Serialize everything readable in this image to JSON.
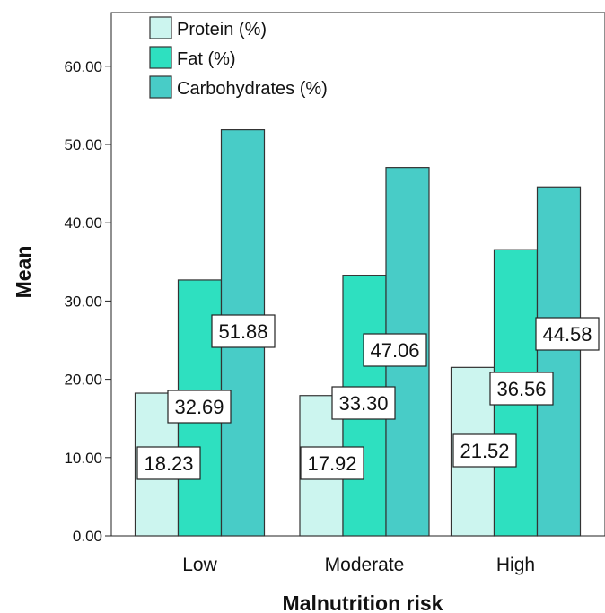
{
  "chart_data": {
    "type": "bar",
    "title": "",
    "xlabel": "Malnutrition risk",
    "ylabel": "Mean",
    "categories": [
      "Low",
      "Moderate",
      "High"
    ],
    "series": [
      {
        "name": "Protein (%)",
        "values": [
          18.23,
          17.92,
          21.52
        ],
        "color": "#ccf5ef"
      },
      {
        "name": "Fat (%)",
        "values": [
          32.69,
          33.3,
          36.56
        ],
        "color": "#2ee0c0"
      },
      {
        "name": "Carbohydrates (%)",
        "values": [
          51.88,
          47.06,
          44.58
        ],
        "color": "#48ccc7"
      }
    ],
    "yticks": [
      "0.00",
      "10.00",
      "20.00",
      "30.00",
      "40.00",
      "50.00",
      "60.00"
    ],
    "ylim": [
      0,
      60
    ],
    "grid": false,
    "legend_position": "top-left",
    "data_labels": [
      [
        "18.23",
        "17.92",
        "21.52"
      ],
      [
        "32.69",
        "33.30",
        "36.56"
      ],
      [
        "51.88",
        "47.06",
        "44.58"
      ]
    ]
  }
}
